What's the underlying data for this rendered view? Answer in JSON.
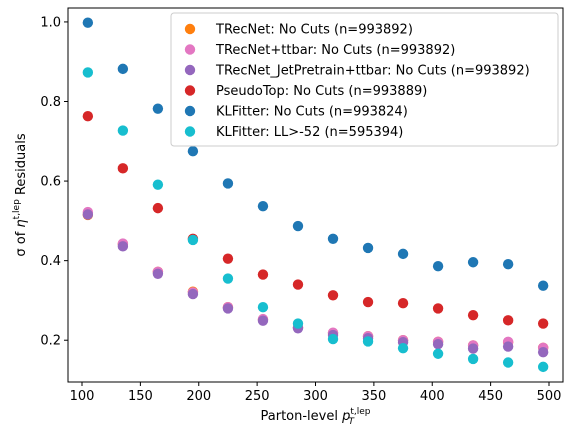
{
  "chart_data": {
    "type": "scatter",
    "xlabel": "Parton-level p_T^{t,lep}",
    "ylabel": "σ of η^{t,lep} Residuals",
    "xlim": [
      88,
      512
    ],
    "ylim": [
      0.095,
      1.035
    ],
    "xticks": [
      100,
      150,
      200,
      250,
      300,
      350,
      400,
      450,
      500
    ],
    "yticks": [
      0.2,
      0.4,
      0.6,
      0.8,
      1.0
    ],
    "xtick_labels": [
      "100",
      "150",
      "200",
      "250",
      "300",
      "350",
      "400",
      "450",
      "500"
    ],
    "ytick_labels": [
      "0.2",
      "0.4",
      "0.6",
      "0.8",
      "1.0"
    ],
    "legend_position": "top-right",
    "grid": false,
    "x": [
      105,
      135,
      165,
      195,
      225,
      255,
      285,
      315,
      345,
      375,
      405,
      435,
      465,
      495
    ],
    "series": [
      {
        "name": "TRecNet: No Cuts (n=993892)",
        "color": "#ff7f0e",
        "values": [
          0.515,
          0.442,
          0.372,
          0.322,
          0.283,
          0.252,
          0.232,
          0.218,
          0.21,
          0.2,
          0.196,
          0.187,
          0.195,
          0.181
        ]
      },
      {
        "name": "TRecNet+ttbar: No Cuts (n=993892)",
        "color": "#e377c2",
        "values": [
          0.522,
          0.443,
          0.372,
          0.32,
          0.283,
          0.253,
          0.232,
          0.219,
          0.21,
          0.2,
          0.196,
          0.187,
          0.196,
          0.181
        ]
      },
      {
        "name": "TRecNet_JetPretrain+ttbar: No Cuts (n=993892)",
        "color": "#9467bd",
        "values": [
          0.516,
          0.436,
          0.367,
          0.316,
          0.28,
          0.249,
          0.23,
          0.213,
          0.205,
          0.195,
          0.19,
          0.179,
          0.184,
          0.17
        ]
      },
      {
        "name": "PseudoTop: No Cuts (n=993889)",
        "color": "#d62728",
        "values": [
          0.763,
          0.632,
          0.532,
          0.455,
          0.405,
          0.365,
          0.34,
          0.313,
          0.296,
          0.293,
          0.28,
          0.263,
          0.25,
          0.242
        ]
      },
      {
        "name": "KLFitter: No Cuts (n=993824)",
        "color": "#1f77b4",
        "values": [
          0.998,
          0.882,
          0.782,
          0.675,
          0.594,
          0.537,
          0.487,
          0.455,
          0.432,
          0.417,
          0.386,
          0.396,
          0.391,
          0.337
        ]
      },
      {
        "name": "KLFitter: LL>-52 (n=595394)",
        "color": "#17becf",
        "values": [
          0.873,
          0.727,
          0.591,
          0.452,
          0.355,
          0.283,
          0.242,
          0.203,
          0.197,
          0.18,
          0.166,
          0.153,
          0.144,
          0.133
        ]
      }
    ]
  }
}
